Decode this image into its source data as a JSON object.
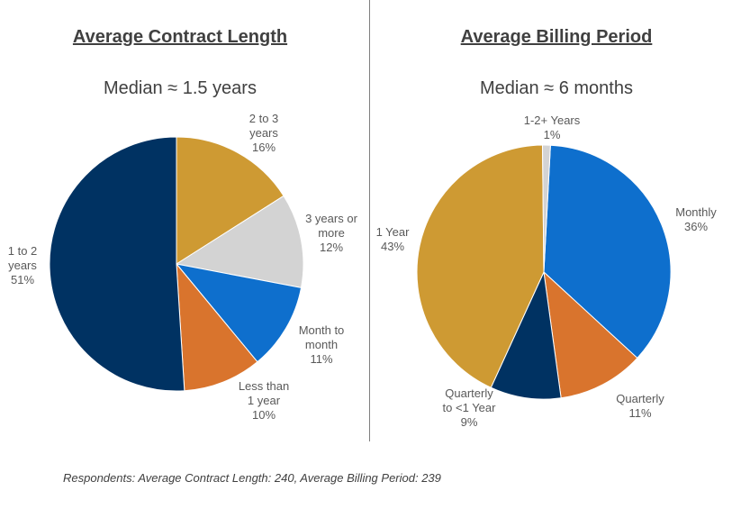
{
  "footnote": "Respondents: Average Contract Length: 240, Average Billing Period: 239",
  "chart_data": [
    {
      "type": "pie",
      "title": "Average Contract Length",
      "subtitle": "Median ≈ 1.5 years",
      "slices": [
        {
          "label": "2 to 3\nyears\n16%",
          "name": "2 to 3 years",
          "value": 16,
          "color": "#CE9A33"
        },
        {
          "label": "3 years or\nmore\n12%",
          "name": "3 years or more",
          "value": 12,
          "color": "#D3D3D3"
        },
        {
          "label": "Month to\nmonth\n11%",
          "name": "Month to month",
          "value": 11,
          "color": "#0E6FCD"
        },
        {
          "label": "Less than\n1 year\n10%",
          "name": "Less than 1 year",
          "value": 10,
          "color": "#D9742D"
        },
        {
          "label": "1 to 2\nyears\n51%",
          "name": "1 to 2 years",
          "value": 51,
          "color": "#003262"
        }
      ]
    },
    {
      "type": "pie",
      "title": "Average Billing Period",
      "subtitle": "Median ≈ 6 months",
      "slices": [
        {
          "label": "Monthly\n36%",
          "name": "Monthly",
          "value": 36,
          "color": "#0E6FCD"
        },
        {
          "label": "Quarterly\n11%",
          "name": "Quarterly",
          "value": 11,
          "color": "#D9742D"
        },
        {
          "label": "Quarterly\nto <1 Year\n9%",
          "name": "Quarterly to <1 Year",
          "value": 9,
          "color": "#003262"
        },
        {
          "label": "1 Year\n43%",
          "name": "1 Year",
          "value": 43,
          "color": "#CE9A33"
        },
        {
          "label": "1-2+ Years\n1%",
          "name": "1-2+ Years",
          "value": 1,
          "color": "#D3D3D3"
        }
      ]
    }
  ]
}
